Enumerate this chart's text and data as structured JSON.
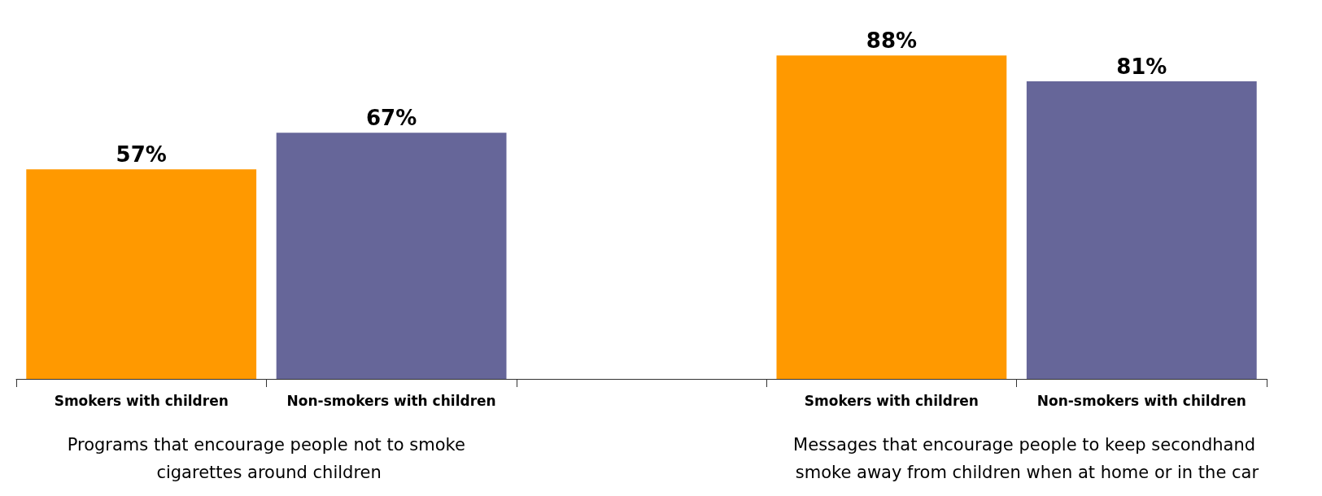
{
  "chart_data": {
    "type": "bar",
    "categories": [
      "Smokers with children",
      "Non-smokers with children",
      null,
      "Smokers with children",
      "Non-smokers with children"
    ],
    "values": [
      57,
      67,
      null,
      88,
      81
    ],
    "colors": [
      "#ff9900",
      "#666699",
      null,
      "#ff9900",
      "#666699"
    ],
    "value_labels": [
      "57%",
      "67%",
      null,
      "88%",
      "81%"
    ],
    "annotations": [
      "Programs that encourage people not to smoke cigarettes around children",
      "Messages that encourage people to keep secondhand smoke away from children when at home or in the car"
    ]
  }
}
